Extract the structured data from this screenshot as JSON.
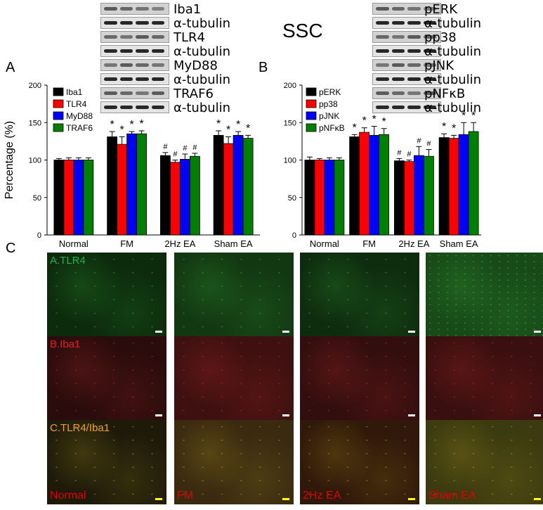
{
  "title": "SSC",
  "panels": {
    "a": "A",
    "b": "B",
    "c": "C"
  },
  "blots_left": [
    "Iba1",
    "α-tubulin",
    "TLR4",
    "α-tubulin",
    "MyD88",
    "α-tubulin",
    "TRAF6",
    "α-tubulin"
  ],
  "blots_right": [
    "pERK",
    "α-tubulin",
    "pp38",
    "α-tubulin",
    "pJNK",
    "α-tubulin",
    "pNFκB",
    "α-tubulin"
  ],
  "chart_data": [
    {
      "type": "bar",
      "categories": [
        "Normal",
        "FM",
        "2Hz EA",
        "Sham EA"
      ],
      "ylabel": "Percentage (%)",
      "ylim": [
        0,
        200
      ],
      "yticks": [
        "0",
        "50",
        "100",
        "150",
        "200"
      ],
      "legend": "top-left",
      "series": [
        {
          "name": "Iba1",
          "color": "#000000",
          "values": [
            100,
            131,
            106,
            133
          ],
          "err": [
            2,
            7,
            4,
            6
          ],
          "marks": [
            "",
            "*",
            "#",
            "*"
          ]
        },
        {
          "name": "TLR4",
          "color": "#ff0000",
          "values": [
            100,
            121,
            97,
            122
          ],
          "err": [
            3,
            10,
            3,
            9
          ],
          "marks": [
            "",
            "*",
            "#",
            "*"
          ]
        },
        {
          "name": "MyD88",
          "color": "#0000ff",
          "values": [
            100,
            135,
            101,
            133
          ],
          "err": [
            3,
            3,
            7,
            5
          ],
          "marks": [
            "",
            "*",
            "#",
            "*"
          ]
        },
        {
          "name": "TRAF6",
          "color": "#008000",
          "values": [
            100,
            135,
            105,
            129
          ],
          "err": [
            3,
            4,
            4,
            4
          ],
          "marks": [
            "",
            "*",
            "#",
            "*"
          ]
        }
      ]
    },
    {
      "type": "bar",
      "categories": [
        "Normal",
        "FM",
        "2Hz EA",
        "Sham EA"
      ],
      "ylabel": "",
      "ylim": [
        0,
        200
      ],
      "yticks": [
        "0",
        "50",
        "100",
        "150",
        "200"
      ],
      "legend": "top-left",
      "series": [
        {
          "name": "pERK",
          "color": "#000000",
          "values": [
            100,
            131,
            99,
            130
          ],
          "err": [
            4,
            3,
            3,
            5
          ],
          "marks": [
            "",
            "*",
            "#",
            "*"
          ]
        },
        {
          "name": "pp38",
          "color": "#ff0000",
          "values": [
            100,
            137,
            98,
            129
          ],
          "err": [
            2,
            6,
            2,
            4
          ],
          "marks": [
            "",
            "*",
            "#",
            "*"
          ]
        },
        {
          "name": "pJNK",
          "color": "#0000ff",
          "values": [
            100,
            133,
            106,
            134
          ],
          "err": [
            3,
            12,
            12,
            16
          ],
          "marks": [
            "",
            "*",
            "#",
            "*"
          ]
        },
        {
          "name": "pNFκB",
          "color": "#008000",
          "values": [
            100,
            134,
            105,
            138
          ],
          "err": [
            3,
            8,
            9,
            12
          ],
          "marks": [
            "",
            "*",
            "#",
            "*"
          ]
        }
      ]
    }
  ],
  "micrographs": {
    "row_labels": [
      "A.TLR4",
      "B.Iba1",
      "C.TLR4/Iba1"
    ],
    "row_label_colors": [
      "#22b14c",
      "#e02020",
      "#f0a020"
    ],
    "groups": [
      "Normal",
      "FM",
      "2Hz EA",
      "Sham EA"
    ]
  }
}
